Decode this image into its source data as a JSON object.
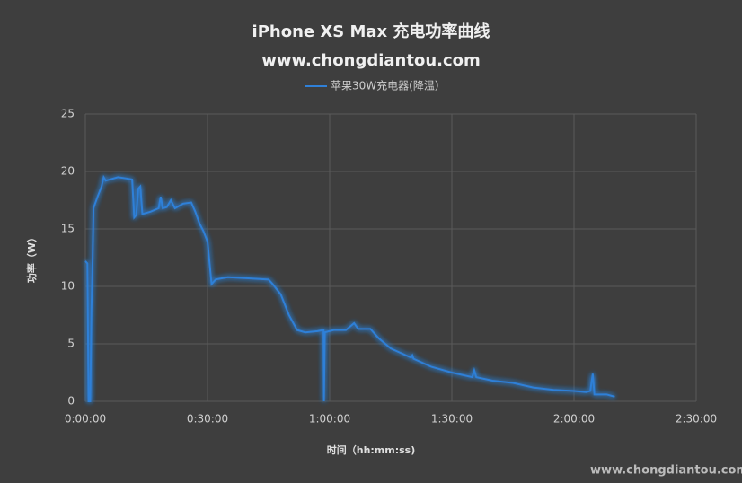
{
  "chart_data": {
    "type": "line",
    "title": "iPhone XS Max 充电功率曲线",
    "subtitle": "www.chongdiantou.com",
    "x_label": "时间（hh:mm:ss)",
    "y_label": "功率（W）",
    "watermark": "www.chongdiantou.com",
    "xlim": [
      0,
      150
    ],
    "ylim": [
      0,
      25
    ],
    "xticks": [
      {
        "value": 0,
        "label": "0:00:00"
      },
      {
        "value": 30,
        "label": "0:30:00"
      },
      {
        "value": 60,
        "label": "1:00:00"
      },
      {
        "value": 90,
        "label": "1:30:00"
      },
      {
        "value": 120,
        "label": "2:00:00"
      },
      {
        "value": 150,
        "label": "2:30:00"
      }
    ],
    "yticks": [
      0,
      5,
      10,
      15,
      20,
      25
    ],
    "grid": true,
    "legend": "top",
    "series": [
      {
        "name": "苹果30W充电器(降温）",
        "color": "#2f80d8",
        "x": [
          0,
          0.5,
          0.8,
          1.2,
          1.5,
          1.8,
          2,
          3,
          4,
          4.5,
          5,
          6,
          8,
          10,
          11.5,
          12,
          12.5,
          13,
          13.5,
          14,
          16,
          18,
          18.5,
          19,
          20,
          21,
          22,
          24,
          26,
          27,
          28,
          29,
          30,
          31,
          32,
          35,
          40,
          45,
          46,
          48,
          50,
          52,
          54,
          57,
          58.5,
          58.6,
          58.8,
          61,
          64,
          66,
          67,
          70,
          72,
          75,
          80,
          80.3,
          80.6,
          85,
          90,
          95,
          95.5,
          96,
          100,
          105,
          110,
          115,
          120,
          123,
          124,
          124.6,
          125,
          128,
          130
        ],
        "values": [
          12.2,
          12,
          0,
          0,
          8,
          12.5,
          16.8,
          17.8,
          18.7,
          19.5,
          19.2,
          19.3,
          19.5,
          19.4,
          19.3,
          16,
          16.2,
          18.5,
          18.7,
          16.3,
          16.5,
          16.8,
          17.8,
          16.8,
          16.9,
          17.5,
          16.8,
          17.2,
          17.3,
          16.5,
          15.5,
          14.8,
          13.9,
          10.2,
          10.6,
          10.8,
          10.7,
          10.6,
          10.2,
          9.3,
          7.5,
          6.2,
          6.0,
          6.1,
          6.2,
          0,
          6.0,
          6.2,
          6.2,
          6.8,
          6.3,
          6.3,
          5.5,
          4.6,
          3.8,
          4.0,
          3.7,
          3.0,
          2.5,
          2.1,
          2.7,
          2.1,
          1.8,
          1.6,
          1.2,
          1.0,
          0.9,
          0.8,
          0.9,
          2.4,
          0.6,
          0.6,
          0.4
        ]
      }
    ]
  }
}
